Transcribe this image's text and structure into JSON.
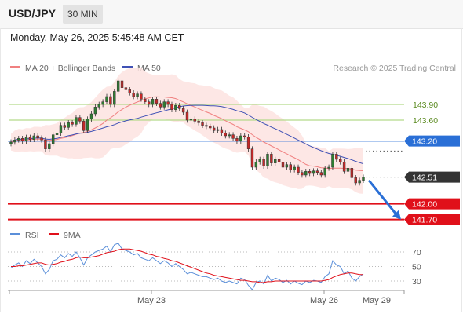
{
  "header": {
    "symbol": "USD/JPY",
    "interval": "30 MIN",
    "datetime": "Monday, May 26, 2025 5:45:48 AM CET"
  },
  "legend": {
    "ma20_label": "MA 20 + Bollinger Bands",
    "ma50_label": "MA 50",
    "credit": "Research © 2025 Trading Central",
    "rsi_label": "RSI",
    "rsi_ma_label": "9MA"
  },
  "colors": {
    "up_candle": "#2e7d32",
    "down_candle": "#c62828",
    "ma20": "#f08080",
    "bollinger_fill": "#fde3e1",
    "ma50": "#3f51b5",
    "resistance_green": "#b5d98a",
    "level_blue": "#2a6fd6",
    "support_red": "#e0101a",
    "current_label_bg": "#333333",
    "rsi": "#5b8fd9",
    "rsi_ma": "#e0101a",
    "arrow": "#2a6fd6"
  },
  "chart_data": {
    "type": "candlestick",
    "x_tick_labels": [
      "May 23",
      "May 26",
      "May 29"
    ],
    "price_axis_labels": [
      "143.90",
      "143.60",
      "143.20",
      "142.51",
      "142.00",
      "141.70"
    ],
    "levels": [
      {
        "value": 143.9,
        "label": "143.90",
        "style": "resistance",
        "color": "#b5d98a"
      },
      {
        "value": 143.6,
        "label": "143.60",
        "style": "resistance",
        "color": "#b5d98a"
      },
      {
        "value": 143.2,
        "label": "143.20",
        "style": "pivot",
        "color": "#2a6fd6"
      },
      {
        "value": 142.51,
        "label": "142.51",
        "style": "current",
        "color": "#333333"
      },
      {
        "value": 142.0,
        "label": "142.00",
        "style": "support",
        "color": "#e0101a"
      },
      {
        "value": 141.7,
        "label": "141.70",
        "style": "support",
        "color": "#e0101a"
      }
    ],
    "candles_close": [
      143.18,
      143.22,
      143.25,
      143.2,
      143.27,
      143.23,
      143.3,
      143.26,
      143.22,
      143.05,
      143.15,
      143.32,
      143.35,
      143.5,
      143.46,
      143.55,
      143.52,
      143.65,
      143.58,
      143.4,
      143.62,
      143.72,
      143.85,
      143.9,
      143.95,
      144.05,
      143.9,
      144.15,
      144.35,
      144.22,
      144.18,
      144.12,
      144.05,
      144.1,
      144.0,
      143.95,
      143.9,
      144.0,
      143.92,
      143.85,
      143.95,
      143.9,
      143.8,
      143.88,
      143.82,
      143.75,
      143.6,
      143.62,
      143.58,
      143.55,
      143.5,
      143.48,
      143.45,
      143.4,
      143.42,
      143.35,
      143.3,
      143.32,
      143.25,
      143.2,
      143.3,
      143.28,
      143.05,
      142.7,
      142.8,
      142.85,
      142.72,
      142.95,
      142.78,
      142.85,
      142.8,
      142.7,
      142.75,
      142.65,
      142.7,
      142.6,
      142.55,
      142.62,
      142.58,
      142.63,
      142.6,
      142.55,
      142.68,
      142.7,
      142.95,
      142.85,
      142.8,
      142.62,
      142.68,
      142.5,
      142.4,
      142.45,
      142.51
    ],
    "candles_open": [
      143.15,
      143.18,
      143.22,
      143.25,
      143.2,
      143.27,
      143.23,
      143.3,
      143.26,
      143.22,
      143.05,
      143.15,
      143.32,
      143.35,
      143.5,
      143.46,
      143.55,
      143.52,
      143.65,
      143.58,
      143.4,
      143.62,
      143.72,
      143.85,
      143.9,
      143.95,
      144.05,
      143.9,
      144.15,
      144.35,
      144.22,
      144.18,
      144.12,
      144.05,
      144.1,
      144.0,
      143.95,
      143.9,
      144.0,
      143.92,
      143.85,
      143.95,
      143.9,
      143.8,
      143.88,
      143.82,
      143.75,
      143.6,
      143.62,
      143.58,
      143.55,
      143.5,
      143.48,
      143.45,
      143.4,
      143.42,
      143.35,
      143.3,
      143.32,
      143.25,
      143.2,
      143.3,
      143.28,
      143.05,
      142.7,
      142.8,
      142.85,
      142.72,
      142.95,
      142.78,
      142.85,
      142.8,
      142.7,
      142.75,
      142.65,
      142.7,
      142.6,
      142.55,
      142.62,
      142.58,
      142.63,
      142.6,
      142.55,
      142.68,
      142.7,
      142.95,
      142.85,
      142.8,
      142.62,
      142.68,
      142.5,
      142.4,
      142.45
    ],
    "rsi_axis_labels": [
      "70",
      "50",
      "30"
    ],
    "rsi_range": [
      18,
      82
    ],
    "rsi_values": [
      48,
      52,
      55,
      50,
      58,
      54,
      60,
      55,
      50,
      40,
      46,
      58,
      60,
      66,
      62,
      68,
      64,
      70,
      62,
      52,
      62,
      66,
      70,
      72,
      74,
      78,
      70,
      80,
      82,
      74,
      72,
      70,
      66,
      68,
      62,
      60,
      58,
      62,
      58,
      54,
      58,
      55,
      50,
      54,
      50,
      46,
      40,
      42,
      40,
      38,
      36,
      36,
      34,
      32,
      34,
      30,
      28,
      30,
      28,
      26,
      34,
      32,
      24,
      18,
      28,
      30,
      26,
      38,
      30,
      34,
      32,
      28,
      31,
      26,
      30,
      27,
      25,
      30,
      28,
      31,
      30,
      28,
      36,
      40,
      58,
      52,
      50,
      40,
      44,
      34,
      30,
      36,
      40
    ],
    "rsi_ma_values": [
      50,
      50,
      51,
      51,
      52,
      53,
      54,
      55,
      55,
      53,
      52,
      53,
      54,
      56,
      57,
      59,
      60,
      62,
      63,
      62,
      62,
      63,
      64,
      65,
      67,
      69,
      70,
      71,
      73,
      74,
      74,
      74,
      73,
      72,
      71,
      69,
      67,
      66,
      64,
      63,
      61,
      60,
      58,
      57,
      55,
      53,
      51,
      49,
      47,
      45,
      43,
      41,
      40,
      38,
      37,
      36,
      35,
      34,
      33,
      32,
      31,
      31,
      30,
      29,
      29,
      28,
      28,
      29,
      29,
      30,
      30,
      30,
      30,
      30,
      30,
      30,
      30,
      30,
      30,
      30,
      30,
      30,
      31,
      32,
      35,
      37,
      39,
      40,
      41,
      41,
      40,
      39,
      39
    ]
  }
}
